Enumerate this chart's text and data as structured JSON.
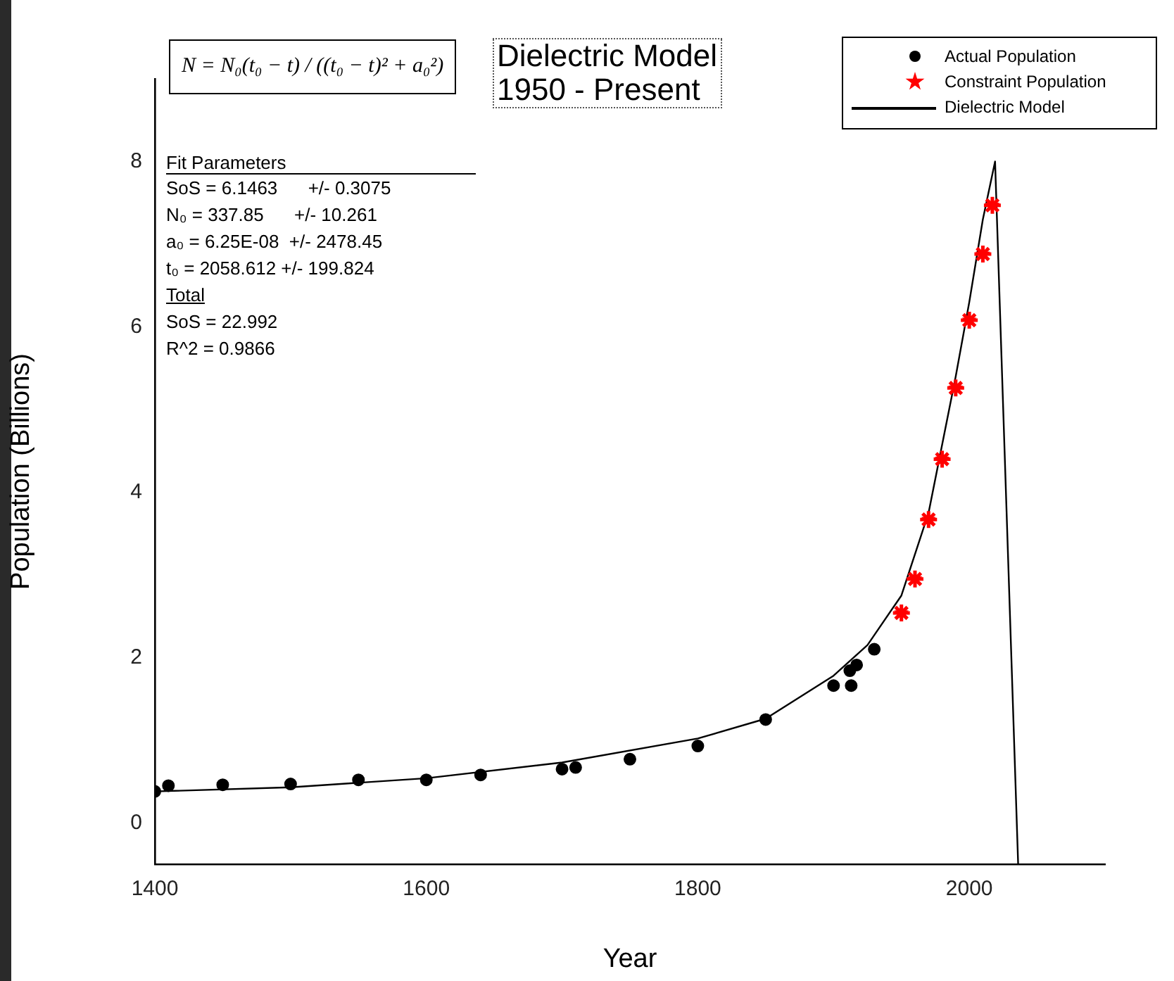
{
  "chart_data": {
    "type": "scatter",
    "title": "Dielectric Model",
    "subtitle": "1950 - Present",
    "xlabel": "Year",
    "ylabel": "Population (Billions)",
    "xlim": [
      1400,
      2100
    ],
    "xticks": [
      1400,
      1600,
      1800,
      2000
    ],
    "ylim": [
      -0.5,
      9
    ],
    "yticks": [
      0,
      2,
      4,
      6,
      8
    ],
    "grid": false,
    "legend": "top right",
    "series": [
      {
        "name": "Actual Population",
        "type": "scatter",
        "marker": "circle",
        "color": "#000000",
        "x": [
          1400,
          1410,
          1450,
          1500,
          1550,
          1600,
          1640,
          1700,
          1710,
          1750,
          1800,
          1850,
          1900,
          1912,
          1913,
          1917,
          1930
        ],
        "values": [
          0.38,
          0.45,
          0.46,
          0.47,
          0.52,
          0.52,
          0.58,
          0.65,
          0.67,
          0.77,
          0.93,
          1.25,
          1.66,
          1.84,
          1.66,
          1.91,
          2.1
        ]
      },
      {
        "name": "Constraint Population",
        "type": "scatter",
        "marker": "star",
        "color": "#ff0000",
        "x": [
          1950,
          1960,
          1970,
          1980,
          1990,
          2000,
          2010,
          2017
        ],
        "values": [
          2.54,
          2.95,
          3.67,
          4.4,
          5.26,
          6.08,
          6.88,
          7.47
        ]
      },
      {
        "name": "Dielectric Model",
        "type": "line",
        "marker": "none",
        "line_style": "solid",
        "color": "#000000",
        "x": [
          1400,
          1500,
          1600,
          1700,
          1800,
          1850,
          1900,
          1925,
          1950,
          1970,
          1990,
          2000,
          2010,
          2019,
          2036
        ],
        "values": [
          0.38,
          0.43,
          0.54,
          0.73,
          1.02,
          1.26,
          1.78,
          2.15,
          2.75,
          3.75,
          5.4,
          6.3,
          7.3,
          8.0,
          -0.5
        ]
      }
    ],
    "annotations": [
      "N = N₀(t₀ − t) / ((t₀ − t)² + a₀²)",
      "Fit Parameters",
      "SoS = 6.1463      +/- 0.3075",
      "N₀ = 337.85      +/- 10.261",
      "a₀ = 6.25E-08  +/- 2478.45",
      "t₀ = 2058.612 +/- 199.824",
      "Total",
      "SoS = 22.992",
      "R^2 = 0.9866"
    ]
  }
}
